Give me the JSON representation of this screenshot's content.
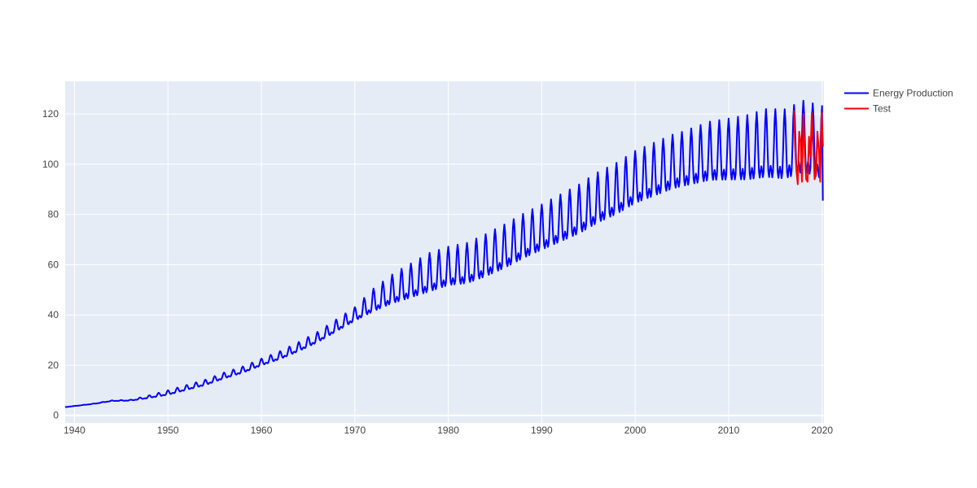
{
  "chart_data": {
    "type": "line",
    "title": "",
    "xlabel": "",
    "ylabel": "",
    "xlim": [
      1939.0,
      2020.2
    ],
    "ylim": [
      -3,
      133
    ],
    "xticks": [
      1940,
      1950,
      1960,
      1970,
      1980,
      1990,
      2000,
      2010,
      2020
    ],
    "xtick_labels": [
      "1940",
      "1950",
      "1960",
      "1970",
      "1980",
      "1990",
      "2000",
      "2010",
      "2020"
    ],
    "yticks": [
      0,
      20,
      40,
      60,
      80,
      100,
      120
    ],
    "ytick_labels": [
      "0",
      "20",
      "40",
      "60",
      "80",
      "100",
      "120"
    ],
    "grid": true,
    "legend_position": "top-right-outside",
    "series": [
      {
        "name": "Energy Production",
        "color": "#0000ff",
        "trend": [
          [
            1939.0,
            3.3
          ],
          [
            1942.0,
            4.6
          ],
          [
            1944.0,
            5.8
          ],
          [
            1946.0,
            6.0
          ],
          [
            1948.0,
            7.3
          ],
          [
            1950.0,
            8.8
          ],
          [
            1952.0,
            10.8
          ],
          [
            1954.0,
            12.8
          ],
          [
            1956.0,
            15.5
          ],
          [
            1958.0,
            17.8
          ],
          [
            1960.0,
            20.8
          ],
          [
            1962.0,
            23.5
          ],
          [
            1964.0,
            26.8
          ],
          [
            1966.0,
            30.5
          ],
          [
            1968.0,
            35.0
          ],
          [
            1970.0,
            39.5
          ],
          [
            1972.0,
            44.5
          ],
          [
            1974.0,
            48.5
          ],
          [
            1976.0,
            51.5
          ],
          [
            1978.0,
            54.5
          ],
          [
            1980.0,
            57.0
          ],
          [
            1982.0,
            58.0
          ],
          [
            1984.0,
            61.0
          ],
          [
            1986.0,
            64.5
          ],
          [
            1988.0,
            68.5
          ],
          [
            1990.0,
            72.0
          ],
          [
            1992.0,
            75.5
          ],
          [
            1994.0,
            79.0
          ],
          [
            1996.0,
            83.5
          ],
          [
            1998.0,
            87.0
          ],
          [
            2000.0,
            91.5
          ],
          [
            2002.0,
            94.5
          ],
          [
            2004.0,
            97.5
          ],
          [
            2006.0,
            99.5
          ],
          [
            2008.0,
            101.5
          ],
          [
            2010.0,
            102.0
          ],
          [
            2012.0,
            102.5
          ],
          [
            2014.0,
            104.0
          ],
          [
            2016.0,
            103.5
          ],
          [
            2018.0,
            106.5
          ],
          [
            2020.0,
            104.0
          ]
        ],
        "seasonal_amplitude": [
          [
            1939.0,
            0.0
          ],
          [
            1946.0,
            0.2
          ],
          [
            1950.0,
            1.0
          ],
          [
            1960.0,
            1.5
          ],
          [
            1966.0,
            2.3
          ],
          [
            1970.0,
            3.0
          ],
          [
            1972.0,
            5.0
          ],
          [
            1975.0,
            7.0
          ],
          [
            1978.0,
            8.5
          ],
          [
            1980.0,
            8.5
          ],
          [
            1985.0,
            9.5
          ],
          [
            1990.0,
            10.0
          ],
          [
            1995.0,
            11.0
          ],
          [
            2000.0,
            11.5
          ],
          [
            2005.0,
            12.0
          ],
          [
            2010.0,
            13.5
          ],
          [
            2014.0,
            15.0
          ],
          [
            2020.0,
            16.0
          ]
        ],
        "x_start": 1939.0,
        "x_end": 2020.1,
        "end_value": 85.5
      },
      {
        "name": "Test",
        "color": "#ff0000",
        "values": [
          [
            2017.0,
            121.5
          ],
          [
            2017.1,
            108.0
          ],
          [
            2017.25,
            97.5
          ],
          [
            2017.4,
            92.0
          ],
          [
            2017.55,
            113.0
          ],
          [
            2017.7,
            109.0
          ],
          [
            2017.85,
            93.0
          ],
          [
            2018.0,
            120.0
          ],
          [
            2018.15,
            104.0
          ],
          [
            2018.3,
            94.0
          ],
          [
            2018.45,
            93.0
          ],
          [
            2018.6,
            111.0
          ],
          [
            2018.75,
            103.0
          ],
          [
            2018.9,
            120.5
          ],
          [
            2019.05,
            108.0
          ],
          [
            2019.2,
            94.0
          ],
          [
            2019.35,
            96.0
          ],
          [
            2019.5,
            113.0
          ],
          [
            2019.65,
            106.0
          ],
          [
            2019.8,
            93.0
          ],
          [
            2019.95,
            120.5
          ],
          [
            2020.1,
            107.0
          ]
        ]
      }
    ]
  }
}
